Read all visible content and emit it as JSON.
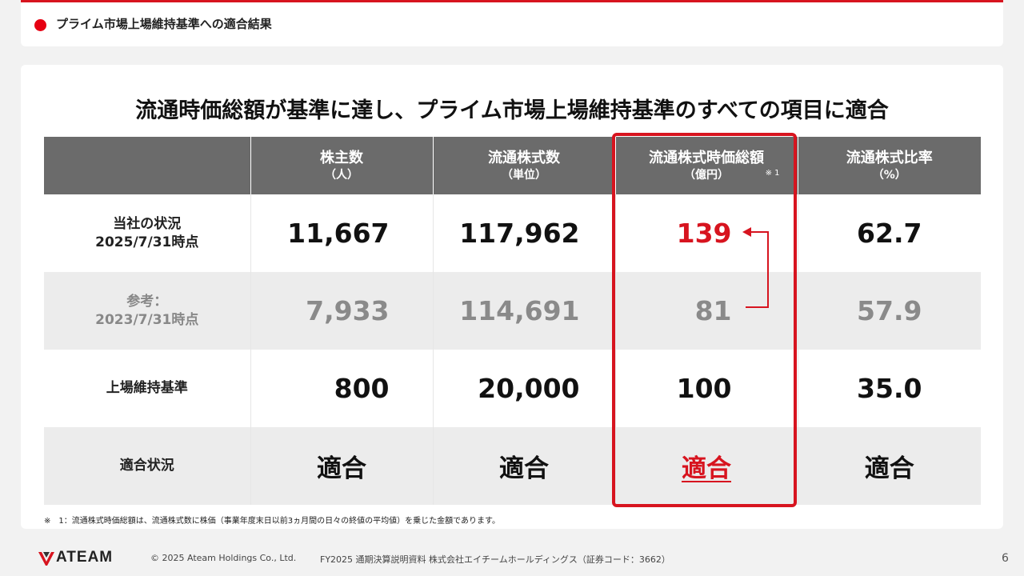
{
  "header": {
    "title": "プライム市場上場維持基準への適合結果"
  },
  "headline": "流通時価総額が基準に達し、プライム市場上場維持基準のすべての項目に適合",
  "table": {
    "columns": [
      {
        "main": "株主数",
        "sub": "（人）"
      },
      {
        "main": "流通株式数",
        "sub": "（単位）"
      },
      {
        "main": "流通株式時価総額",
        "sub": "（億円）",
        "note": "※ 1"
      },
      {
        "main": "流通株式比率",
        "sub": "（%）"
      }
    ],
    "rows": [
      {
        "label_line1": "当社の状況",
        "label_line2": "2025/7/31時点",
        "values": [
          "11,667",
          "117,962",
          "139",
          "62.7"
        ]
      },
      {
        "label_line1": "参考：",
        "label_line2": "2023/7/31時点",
        "values": [
          "7,933",
          "114,691",
          "81",
          "57.9"
        ]
      },
      {
        "label_line1": "上場維持基準",
        "label_line2": "",
        "values": [
          "800",
          "20,000",
          "100",
          "35.0"
        ]
      },
      {
        "label_line1": "適合状況",
        "label_line2": "",
        "values": [
          "適合",
          "適合",
          "適合",
          "適合"
        ]
      }
    ]
  },
  "footnote": "※　1：流通株式時価総額は、流通株式数に株価（事業年度末日以前3ヵ月間の日々の終値の平均値）を乗じた金額であります。",
  "footer": {
    "logo_text": "ATEAM",
    "copyright": "© 2025 Ateam Holdings Co., Ltd.",
    "doc_name": "FY2025 通期決算説明資料 株式会社エイチームホールディングス（証券コード：3662）",
    "page": "6"
  },
  "colors": {
    "accent": "#d7141f",
    "header_bg": "#6b6b6b",
    "row_alt": "#ececec"
  }
}
